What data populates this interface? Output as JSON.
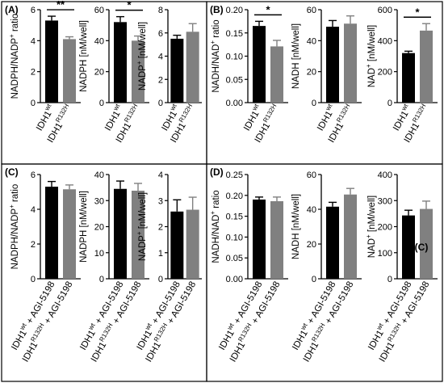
{
  "panels": [
    {
      "label": "(A)",
      "charts": [
        {
          "ylabel_parts": [
            "NADPH/NADP",
            "+",
            " ratio"
          ],
          "ylim": [
            0,
            6
          ],
          "ticks": [
            0,
            2,
            4,
            6
          ],
          "values": [
            5.3,
            4.1
          ],
          "errors": [
            0.28,
            0.15
          ],
          "sig": {
            "text": "**"
          },
          "categories": [
            [
              "IDH1",
              "wt",
              ""
            ],
            [
              "IDH1",
              "R132H",
              ""
            ]
          ]
        },
        {
          "ylabel_parts": [
            "NADPH [nM/well]",
            "",
            ""
          ],
          "ylim": [
            0,
            60
          ],
          "ticks": [
            0,
            20,
            40,
            60
          ],
          "values": [
            52,
            40
          ],
          "errors": [
            3.5,
            3
          ],
          "sig": {
            "text": "*"
          },
          "categories": [
            [
              "IDH1",
              "wt",
              ""
            ],
            [
              "IDH1",
              "R132H",
              ""
            ]
          ]
        },
        {
          "ylabel_parts": [
            "NADP",
            "+",
            " [nM/well]"
          ],
          "ylim": [
            0,
            8
          ],
          "ticks": [
            0,
            2,
            4,
            6,
            8
          ],
          "values": [
            5.5,
            6.1
          ],
          "errors": [
            0.3,
            0.7
          ],
          "sig": null,
          "categories": [
            [
              "IDH1",
              "wt",
              ""
            ],
            [
              "IDH1",
              "R132H",
              ""
            ]
          ]
        }
      ]
    },
    {
      "label": "(B)",
      "charts": [
        {
          "ylabel_parts": [
            "NADH/NAD",
            "+",
            " ratio"
          ],
          "ylim": [
            0,
            0.2
          ],
          "ticks": [
            0.0,
            0.05,
            0.1,
            0.15,
            0.2
          ],
          "tick_labels": [
            "0.00",
            "0.05",
            "0.10",
            "0.15",
            "0.20"
          ],
          "values": [
            0.165,
            0.121
          ],
          "errors": [
            0.01,
            0.013
          ],
          "sig": {
            "text": "*"
          },
          "categories": [
            [
              "IDH1",
              "wt",
              ""
            ],
            [
              "IDH1",
              "R132H",
              ""
            ]
          ]
        },
        {
          "ylabel_parts": [
            "NADH [nM/well]",
            "",
            ""
          ],
          "ylim": [
            0,
            60
          ],
          "ticks": [
            0,
            20,
            40,
            60
          ],
          "values": [
            49,
            51
          ],
          "errors": [
            4,
            5
          ],
          "sig": null,
          "categories": [
            [
              "IDH1",
              "wt",
              ""
            ],
            [
              "IDH1",
              "R132H",
              ""
            ]
          ]
        },
        {
          "ylabel_parts": [
            "NAD",
            "+",
            " [nM/well]"
          ],
          "ylim": [
            0,
            600
          ],
          "ticks": [
            0,
            200,
            400,
            600
          ],
          "values": [
            320,
            465
          ],
          "errors": [
            12,
            45
          ],
          "sig": {
            "text": "*"
          },
          "categories": [
            [
              "IDH1",
              "wt",
              ""
            ],
            [
              "IDH1",
              "R132H",
              ""
            ]
          ]
        }
      ]
    },
    {
      "label": "(C)",
      "charts": [
        {
          "ylabel_parts": [
            "NADPH/NADP",
            "+",
            " ratio"
          ],
          "ylim": [
            0,
            6
          ],
          "ticks": [
            0,
            2,
            4,
            6
          ],
          "values": [
            5.3,
            5.15
          ],
          "errors": [
            0.3,
            0.25
          ],
          "sig": null,
          "categories": [
            [
              "IDH1",
              "wt",
              " + AGI-5198"
            ],
            [
              "IDH1",
              "R132H",
              " + AGI-5198"
            ]
          ]
        },
        {
          "ylabel_parts": [
            "NADPH [nM/well]",
            "",
            ""
          ],
          "ylim": [
            0,
            40
          ],
          "ticks": [
            0,
            10,
            20,
            30,
            40
          ],
          "values": [
            34.5,
            33.8
          ],
          "errors": [
            3,
            2.8
          ],
          "sig": null,
          "categories": [
            [
              "IDH1",
              "wt",
              " + AGI-5198"
            ],
            [
              "IDH1",
              "R132H",
              " + AGI-5198"
            ]
          ]
        },
        {
          "ylabel_parts": [
            "NADP",
            "+",
            " [nM/well]"
          ],
          "ylim": [
            0,
            4
          ],
          "ticks": [
            0,
            1,
            2,
            3,
            4
          ],
          "values": [
            2.58,
            2.65
          ],
          "errors": [
            0.45,
            0.48
          ],
          "sig": null,
          "categories": [
            [
              "IDH1",
              "wt",
              " + AGI-5198"
            ],
            [
              "IDH1",
              "R132H",
              " + AGI-5198"
            ]
          ]
        }
      ]
    },
    {
      "label": "(D)",
      "charts": [
        {
          "ylabel_parts": [
            "NADH/NAD",
            "+",
            " ratio"
          ],
          "ylim": [
            0,
            0.25
          ],
          "ticks": [
            0.0,
            0.05,
            0.1,
            0.15,
            0.2,
            0.25
          ],
          "tick_labels": [
            "0.00",
            "0.05",
            "0.10",
            "0.15",
            "0.20",
            "0.25"
          ],
          "values": [
            0.19,
            0.186
          ],
          "errors": [
            0.006,
            0.01
          ],
          "sig": null,
          "categories": [
            [
              "IDH1",
              "wt",
              " + AGI-5198"
            ],
            [
              "IDH1",
              "R132H",
              " + AGI-5198"
            ]
          ]
        },
        {
          "ylabel_parts": [
            "NADH [nM/well]",
            "",
            ""
          ],
          "ylim": [
            0,
            60
          ],
          "ticks": [
            0,
            20,
            40,
            60
          ],
          "values": [
            41.5,
            48.5
          ],
          "errors": [
            2.5,
            3.5
          ],
          "sig": null,
          "categories": [
            [
              "IDH1",
              "wt",
              " + AGI-5198"
            ],
            [
              "IDH1",
              "R132H",
              " + AGI-5198"
            ]
          ]
        },
        {
          "ylabel_parts": [
            "NAD",
            "+",
            " [nM/well]"
          ],
          "ylim": [
            0,
            400
          ],
          "ticks": [
            0,
            100,
            200,
            300,
            400
          ],
          "values": [
            243,
            268
          ],
          "errors": [
            20,
            30
          ],
          "sig": null,
          "inset_label": "(C)",
          "categories": [
            [
              "IDH1",
              "wt",
              " + AGI-5198"
            ],
            [
              "IDH1",
              "R132H",
              " + AGI-5198"
            ]
          ]
        }
      ]
    }
  ],
  "colors": {
    "bar_wt": "#000000",
    "bar_mut": "#808080",
    "axis": "#000000",
    "frame": "#000000"
  },
  "chart_data": [
    {
      "panel": "(A)",
      "type": "bar",
      "categories": [
        "IDH1 wt",
        "IDH1 R132H"
      ],
      "values": [
        5.3,
        4.1
      ],
      "errors": [
        0.28,
        0.15
      ],
      "ylabel": "NADPH/NADP+ ratio",
      "ylim": [
        0,
        6
      ],
      "annotations": [
        "**"
      ]
    },
    {
      "panel": "(A)",
      "type": "bar",
      "categories": [
        "IDH1 wt",
        "IDH1 R132H"
      ],
      "values": [
        52,
        40
      ],
      "errors": [
        3.5,
        3
      ],
      "ylabel": "NADPH [nM/well]",
      "ylim": [
        0,
        60
      ],
      "annotations": [
        "*"
      ]
    },
    {
      "panel": "(A)",
      "type": "bar",
      "categories": [
        "IDH1 wt",
        "IDH1 R132H"
      ],
      "values": [
        5.5,
        6.1
      ],
      "errors": [
        0.3,
        0.7
      ],
      "ylabel": "NADP+ [nM/well]",
      "ylim": [
        0,
        8
      ]
    },
    {
      "panel": "(B)",
      "type": "bar",
      "categories": [
        "IDH1 wt",
        "IDH1 R132H"
      ],
      "values": [
        0.165,
        0.121
      ],
      "errors": [
        0.01,
        0.013
      ],
      "ylabel": "NADH/NAD+ ratio",
      "ylim": [
        0,
        0.2
      ],
      "annotations": [
        "*"
      ]
    },
    {
      "panel": "(B)",
      "type": "bar",
      "categories": [
        "IDH1 wt",
        "IDH1 R132H"
      ],
      "values": [
        49,
        51
      ],
      "errors": [
        4,
        5
      ],
      "ylabel": "NADH [nM/well]",
      "ylim": [
        0,
        60
      ]
    },
    {
      "panel": "(B)",
      "type": "bar",
      "categories": [
        "IDH1 wt",
        "IDH1 R132H"
      ],
      "values": [
        320,
        465
      ],
      "errors": [
        12,
        45
      ],
      "ylabel": "NAD+ [nM/well]",
      "ylim": [
        0,
        600
      ],
      "annotations": [
        "*"
      ]
    },
    {
      "panel": "(C)",
      "type": "bar",
      "categories": [
        "IDH1 wt + AGI-5198",
        "IDH1 R132H + AGI-5198"
      ],
      "values": [
        5.3,
        5.15
      ],
      "errors": [
        0.3,
        0.25
      ],
      "ylabel": "NADPH/NADP+ ratio",
      "ylim": [
        0,
        6
      ]
    },
    {
      "panel": "(C)",
      "type": "bar",
      "categories": [
        "IDH1 wt + AGI-5198",
        "IDH1 R132H + AGI-5198"
      ],
      "values": [
        34.5,
        33.8
      ],
      "errors": [
        3,
        2.8
      ],
      "ylabel": "NADPH [nM/well]",
      "ylim": [
        0,
        40
      ]
    },
    {
      "panel": "(C)",
      "type": "bar",
      "categories": [
        "IDH1 wt + AGI-5198",
        "IDH1 R132H + AGI-5198"
      ],
      "values": [
        2.58,
        2.65
      ],
      "errors": [
        0.45,
        0.48
      ],
      "ylabel": "NADP+ [nM/well]",
      "ylim": [
        0,
        4
      ]
    },
    {
      "panel": "(D)",
      "type": "bar",
      "categories": [
        "IDH1 wt + AGI-5198",
        "IDH1 R132H + AGI-5198"
      ],
      "values": [
        0.19,
        0.186
      ],
      "errors": [
        0.006,
        0.01
      ],
      "ylabel": "NADH/NAD+ ratio",
      "ylim": [
        0,
        0.25
      ]
    },
    {
      "panel": "(D)",
      "type": "bar",
      "categories": [
        "IDH1 wt + AGI-5198",
        "IDH1 R132H + AGI-5198"
      ],
      "values": [
        41.5,
        48.5
      ],
      "errors": [
        2.5,
        3.5
      ],
      "ylabel": "NADH [nM/well]",
      "ylim": [
        0,
        60
      ]
    },
    {
      "panel": "(D)",
      "type": "bar",
      "categories": [
        "IDH1 wt + AGI-5198",
        "IDH1 R132H + AGI-5198"
      ],
      "values": [
        243,
        268
      ],
      "errors": [
        20,
        30
      ],
      "ylabel": "NAD+ [nM/well]",
      "ylim": [
        0,
        400
      ]
    }
  ]
}
